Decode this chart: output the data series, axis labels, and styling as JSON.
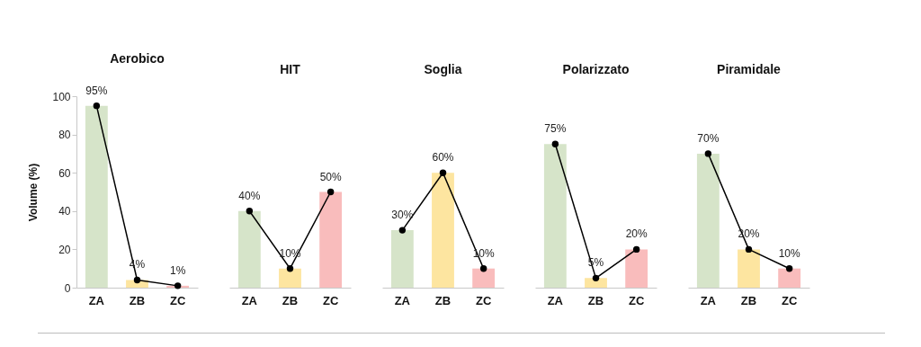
{
  "chart_data": [
    {
      "type": "bar",
      "title": "Aerobico",
      "ylabel": "Volume (%)",
      "categories": [
        "ZA",
        "ZB",
        "ZC"
      ],
      "ylim": [
        0,
        100
      ],
      "yticks": [
        0,
        20,
        40,
        60,
        80,
        100
      ],
      "grid": false,
      "legend": false,
      "series": [
        {
          "colors": [
            "#d6e4c9",
            "#fde5a0",
            "#f9bcbc"
          ],
          "values": [
            95,
            4,
            1
          ]
        },
        {
          "type": "line",
          "color": "#000000",
          "marker": "circle",
          "values": [
            95,
            4,
            1
          ],
          "value_labels": [
            "95%",
            "4%",
            "1%"
          ]
        }
      ]
    },
    {
      "type": "bar",
      "title": "HIT",
      "categories": [
        "ZA",
        "ZB",
        "ZC"
      ],
      "ylim": [
        0,
        100
      ],
      "yticks": [
        0,
        20,
        40,
        60,
        80,
        100
      ],
      "tick_labels": "x",
      "grid": false,
      "legend": false,
      "series": [
        {
          "colors": [
            "#d6e4c9",
            "#fde5a0",
            "#f9bcbc"
          ],
          "values": [
            40,
            10,
            50
          ]
        },
        {
          "type": "line",
          "color": "#000000",
          "marker": "circle",
          "values": [
            40,
            10,
            50
          ],
          "value_labels": [
            "40%",
            "10%",
            "50%"
          ]
        }
      ]
    },
    {
      "type": "bar",
      "title": "Soglia",
      "categories": [
        "ZA",
        "ZB",
        "ZC"
      ],
      "ylim": [
        0,
        100
      ],
      "yticks": [
        0,
        20,
        40,
        60,
        80,
        100
      ],
      "tick_labels": "x",
      "grid": false,
      "legend": false,
      "series": [
        {
          "colors": [
            "#d6e4c9",
            "#fde5a0",
            "#f9bcbc"
          ],
          "values": [
            30,
            60,
            10
          ]
        },
        {
          "type": "line",
          "color": "#000000",
          "marker": "circle",
          "values": [
            30,
            60,
            10
          ],
          "value_labels": [
            "30%",
            "60%",
            "10%"
          ]
        }
      ]
    },
    {
      "type": "bar",
      "title": "Polarizzato",
      "categories": [
        "ZA",
        "ZB",
        "ZC"
      ],
      "ylim": [
        0,
        100
      ],
      "yticks": [
        0,
        20,
        40,
        60,
        80,
        100
      ],
      "tick_labels": "x",
      "grid": false,
      "legend": false,
      "series": [
        {
          "colors": [
            "#d6e4c9",
            "#fde5a0",
            "#f9bcbc"
          ],
          "values": [
            75,
            5,
            20
          ]
        },
        {
          "type": "line",
          "color": "#000000",
          "marker": "circle",
          "values": [
            75,
            5,
            20
          ],
          "value_labels": [
            "75%",
            "5%",
            "20%"
          ]
        }
      ]
    },
    {
      "type": "bar",
      "title": "Piramidale",
      "categories": [
        "ZA",
        "ZB",
        "ZC"
      ],
      "ylim": [
        0,
        100
      ],
      "yticks": [
        0,
        20,
        40,
        60,
        80,
        100
      ],
      "tick_labels": "x",
      "grid": false,
      "legend": false,
      "series": [
        {
          "colors": [
            "#d6e4c9",
            "#fde5a0",
            "#f9bcbc"
          ],
          "values": [
            70,
            20,
            10
          ]
        },
        {
          "type": "line",
          "color": "#000000",
          "marker": "circle",
          "values": [
            70,
            20,
            10
          ],
          "value_labels": [
            "70%",
            "20%",
            "10%"
          ]
        }
      ]
    }
  ]
}
